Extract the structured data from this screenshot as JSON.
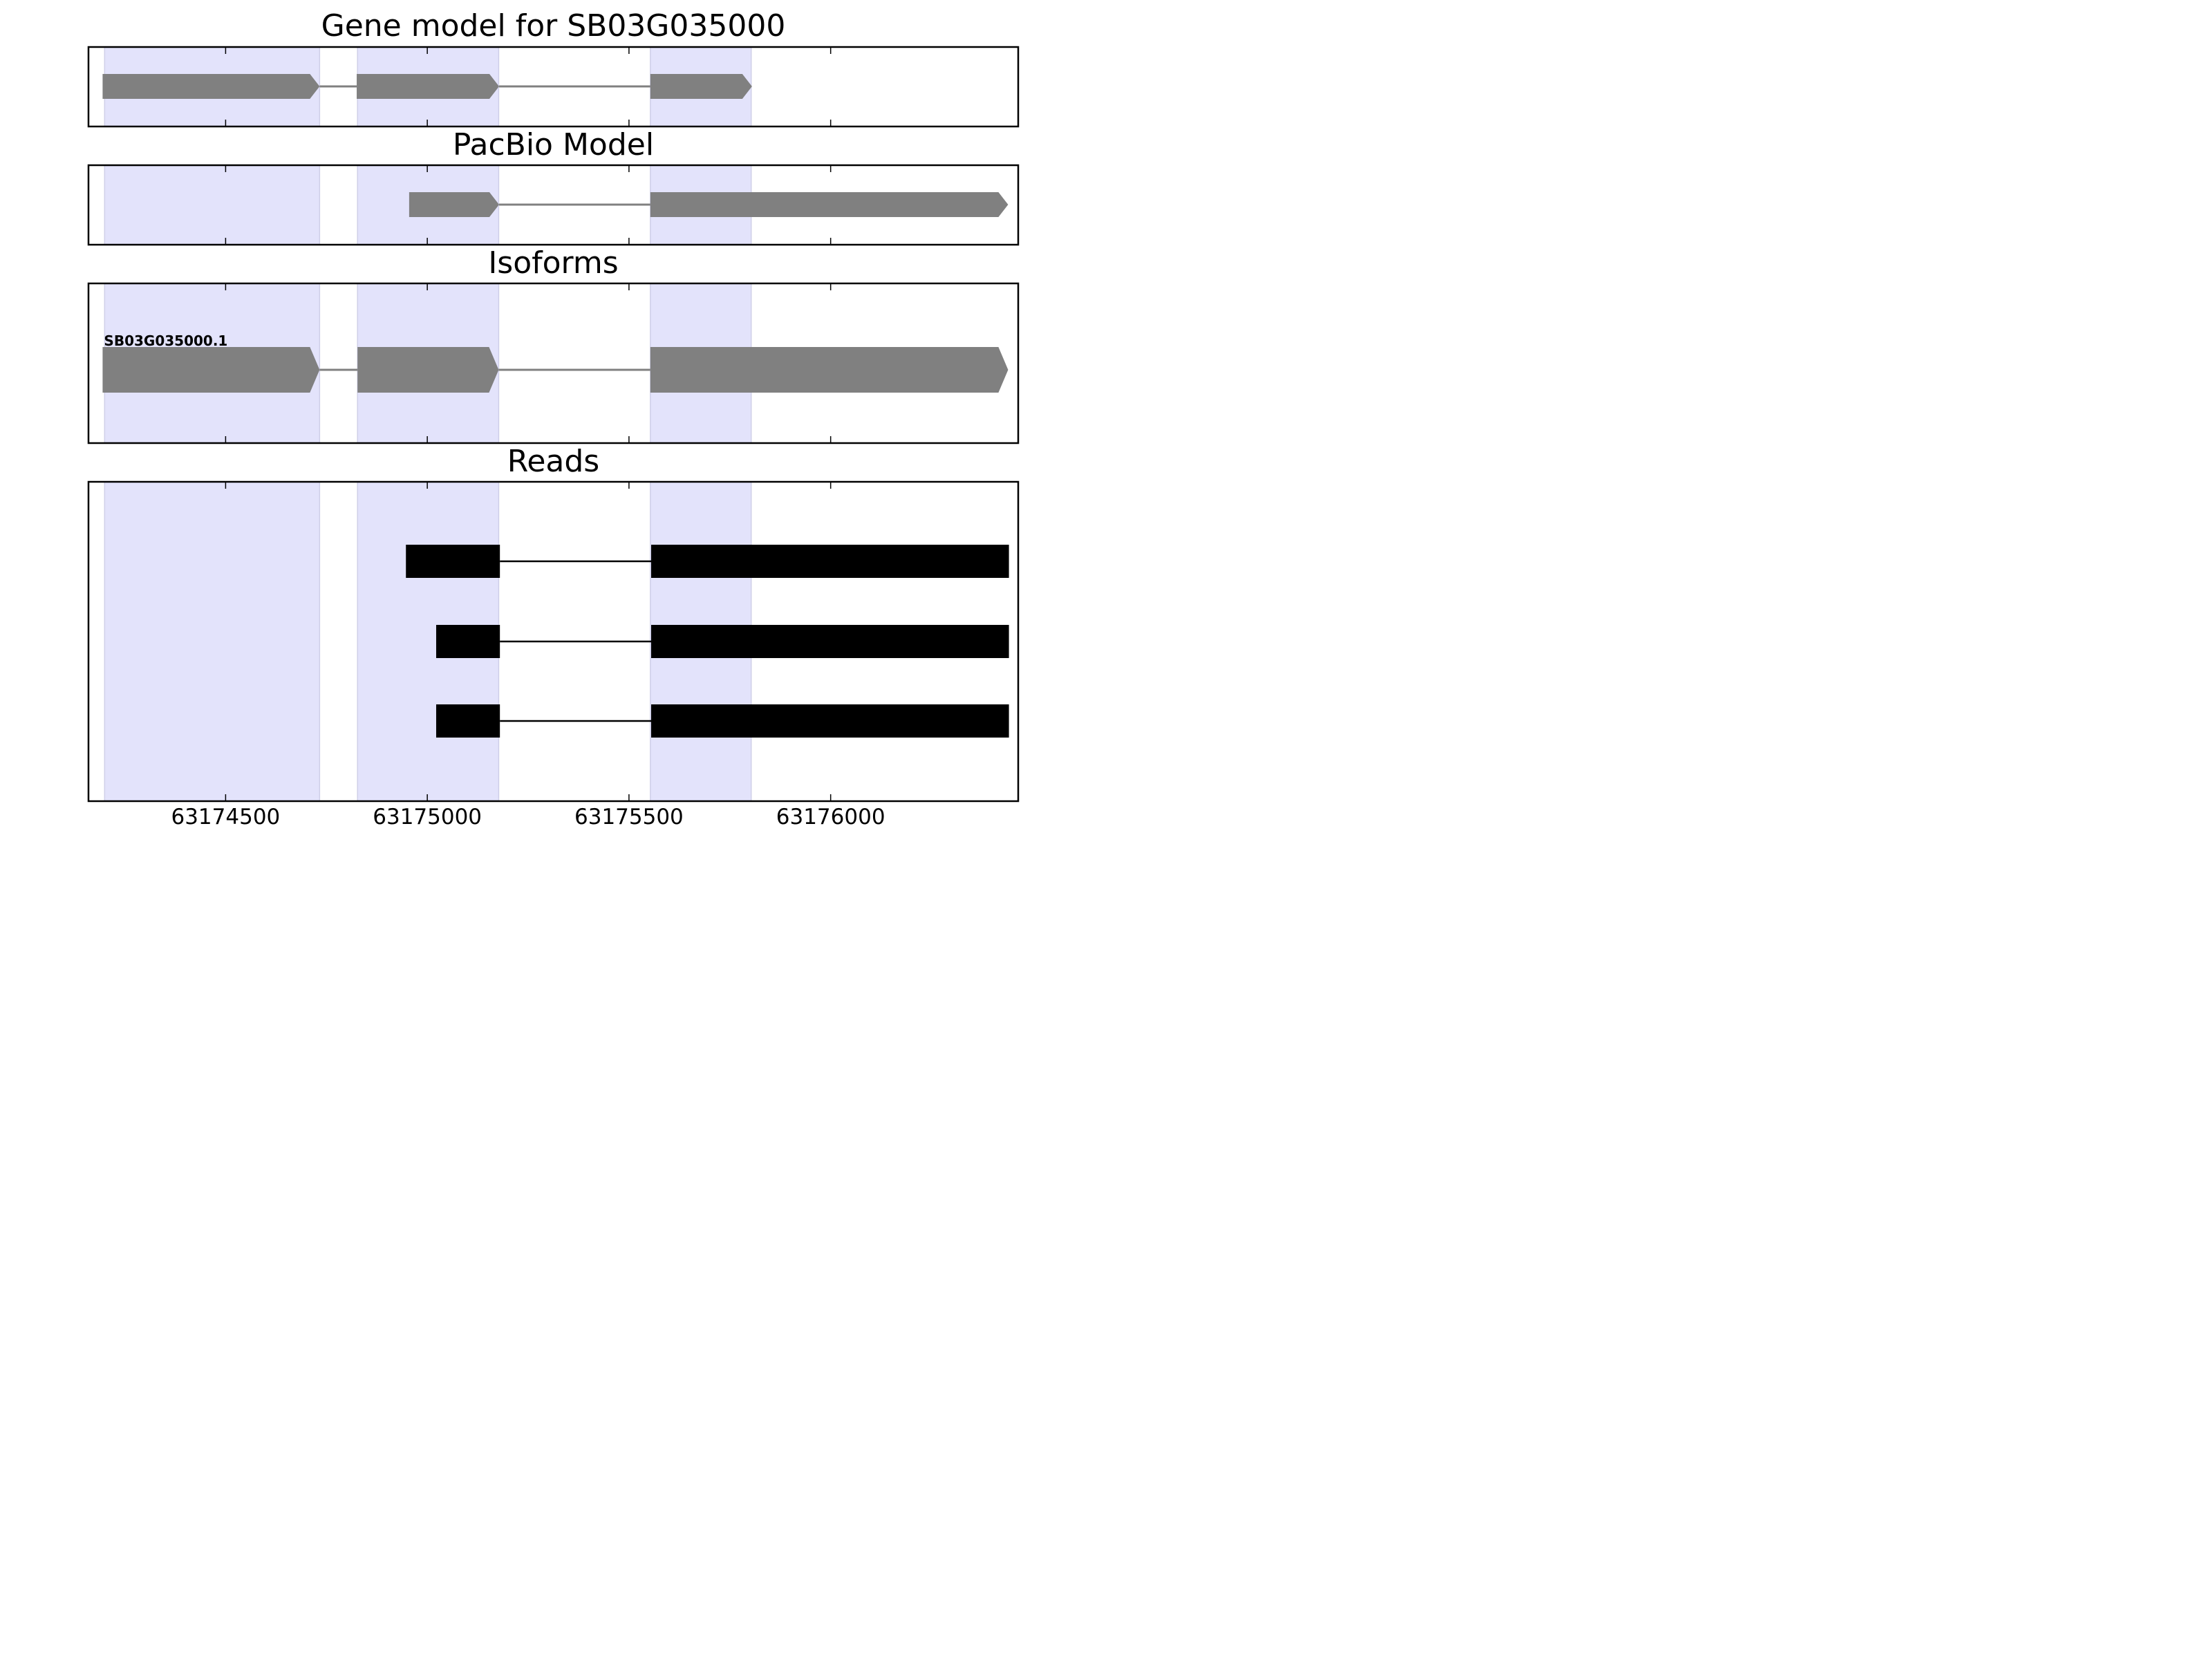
{
  "chart_data": {
    "type": "gene-model-tracks",
    "x_axis": {
      "tick_values": [
        63174500,
        63175000,
        63175500,
        63176000
      ],
      "tick_labels": [
        "63174500",
        "63175000",
        "63175500",
        "63176000"
      ],
      "xlim": [
        63174160,
        63176465
      ]
    },
    "highlight_color": "#e3e3fb",
    "highlight_regions": [
      [
        63174200,
        63174733
      ],
      [
        63174827,
        63175177
      ],
      [
        63175553,
        63175803
      ]
    ],
    "panels": [
      {
        "title": "Gene model for SB03G035000",
        "color": "#808080",
        "features": [
          {
            "label": "",
            "strand": "+",
            "exons": [
              [
                63174195,
                63174733
              ],
              [
                63174825,
                63175178
              ],
              [
                63175553,
                63175805
              ]
            ]
          }
        ]
      },
      {
        "title": "PacBio Model",
        "color": "#808080",
        "features": [
          {
            "label": "",
            "strand": "+",
            "exons": [
              [
                63174955,
                63175178
              ],
              [
                63175553,
                63176440
              ]
            ]
          }
        ]
      },
      {
        "title": "Isoforms",
        "color": "#808080",
        "features": [
          {
            "label": "SB03G035000.1",
            "strand": "+",
            "exons": [
              [
                63174195,
                63174733
              ],
              [
                63174827,
                63175177
              ],
              [
                63175553,
                63176440
              ]
            ]
          }
        ]
      },
      {
        "title": "Reads",
        "color": "#000000",
        "features": [
          {
            "label": "",
            "strand": "",
            "exons": [
              [
                63174947,
                63175180
              ],
              [
                63175555,
                63176442
              ]
            ]
          },
          {
            "label": "",
            "strand": "",
            "exons": [
              [
                63175022,
                63175180
              ],
              [
                63175555,
                63176442
              ]
            ]
          },
          {
            "label": "",
            "strand": "",
            "exons": [
              [
                63175022,
                63175180
              ],
              [
                63175555,
                63176442
              ]
            ]
          }
        ]
      }
    ]
  }
}
